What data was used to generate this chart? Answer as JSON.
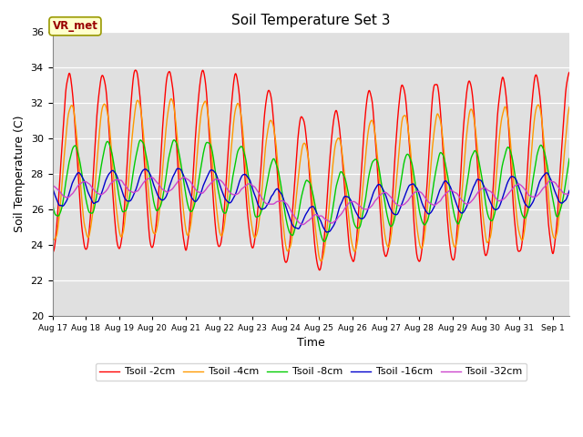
{
  "title": "Soil Temperature Set 3",
  "xlabel": "Time",
  "ylabel": "Soil Temperature (C)",
  "ylim": [
    20,
    36
  ],
  "yticks": [
    20,
    22,
    24,
    26,
    28,
    30,
    32,
    34,
    36
  ],
  "annotation_text": "VR_met",
  "annotation_box_color": "#ffffcc",
  "annotation_text_color": "#990000",
  "annotation_edge_color": "#999900",
  "bg_color": "#e0e0e0",
  "series_colors": [
    "#ff0000",
    "#ff9900",
    "#00cc00",
    "#0000cc",
    "#cc44cc"
  ],
  "series_labels": [
    "Tsoil -2cm",
    "Tsoil -4cm",
    "Tsoil -8cm",
    "Tsoil -16cm",
    "Tsoil -32cm"
  ],
  "n_days": 15.5,
  "dt_hours": 0.25,
  "start_day": 17
}
